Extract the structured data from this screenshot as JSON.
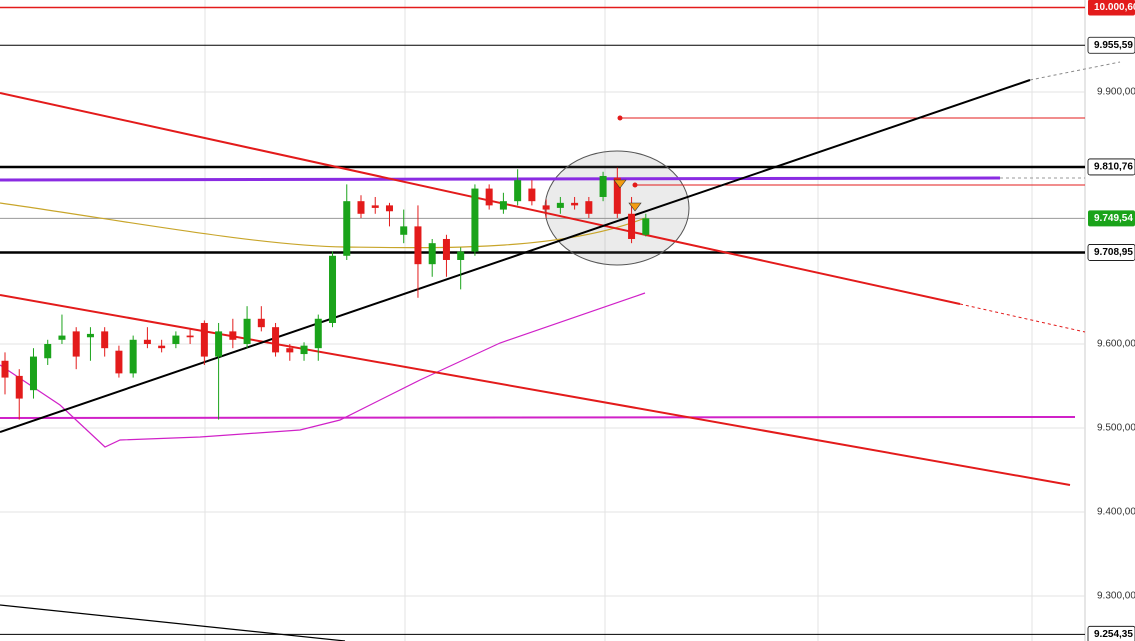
{
  "chart_data": {
    "type": "candlestick",
    "open": [
      9580,
      9562,
      9545,
      9583,
      9605,
      9615,
      9608,
      9615,
      9592,
      9565,
      9605,
      9598,
      9600,
      9610,
      9625,
      9585,
      9615,
      9600,
      9630,
      9620,
      9595,
      9588,
      9595,
      9625,
      9705,
      9770,
      9765,
      9765,
      9730,
      9740,
      9695,
      9725,
      9700,
      9710,
      9785,
      9760,
      9770,
      9785,
      9765,
      9762,
      9768,
      9770,
      9775,
      9798,
      9755,
      9730
    ],
    "high": [
      9590,
      9570,
      9595,
      9605,
      9635,
      9620,
      9620,
      9620,
      9598,
      9610,
      9620,
      9605,
      9615,
      9618,
      9628,
      9625,
      9630,
      9645,
      9645,
      9625,
      9600,
      9602,
      9635,
      9710,
      9790,
      9777,
      9775,
      9768,
      9760,
      9765,
      9725,
      9730,
      9715,
      9790,
      9790,
      9780,
      9808,
      9795,
      9772,
      9775,
      9775,
      9775,
      9805,
      9810,
      9775,
      9755
    ],
    "low": [
      9540,
      9510,
      9535,
      9575,
      9600,
      9570,
      9580,
      9585,
      9560,
      9560,
      9595,
      9590,
      9595,
      9600,
      9575,
      9510,
      9595,
      9595,
      9615,
      9585,
      9580,
      9580,
      9580,
      9620,
      9700,
      9750,
      9755,
      9740,
      9720,
      9655,
      9680,
      9680,
      9665,
      9705,
      9760,
      9755,
      9765,
      9765,
      9750,
      9755,
      9760,
      9750,
      9770,
      9750,
      9720,
      9728
    ],
    "close": [
      9560,
      9535,
      9585,
      9600,
      9610,
      9585,
      9612,
      9595,
      9565,
      9605,
      9600,
      9595,
      9610,
      9608,
      9585,
      9615,
      9605,
      9630,
      9620,
      9590,
      9590,
      9598,
      9630,
      9705,
      9770,
      9755,
      9762,
      9758,
      9740,
      9695,
      9720,
      9700,
      9710,
      9785,
      9765,
      9770,
      9795,
      9770,
      9760,
      9768,
      9765,
      9755,
      9800,
      9755,
      9725,
      9749.54
    ],
    "up_color": "#1aa31a",
    "down_color": "#e31b1b",
    "ylim": [
      9246.4,
      10009.5
    ],
    "yticks": [
      {
        "value": 9300,
        "label": "9.300,00"
      },
      {
        "value": 9400,
        "label": "9.400,00"
      },
      {
        "value": 9500,
        "label": "9.500,00"
      },
      {
        "value": 9600,
        "label": "9.600,00"
      },
      {
        "value": 9900,
        "label": "9.900,00"
      }
    ],
    "grid": true,
    "price_lines": [
      {
        "value": 10000.6,
        "label": "10.000,60",
        "color": "#e31b1b",
        "style": "filled"
      },
      {
        "value": 9955.59,
        "label": "9.955,59",
        "color": "#000000",
        "style": "outline"
      },
      {
        "value": 9810.76,
        "label": "9.810,76",
        "color": "#000000",
        "style": "outline"
      },
      {
        "value": 9749.54,
        "label": "9.749,54",
        "color": "#1aa31a",
        "style": "filled"
      },
      {
        "value": 9708.95,
        "label": "9.708,95",
        "color": "#000000",
        "style": "outline"
      },
      {
        "value": 9254.35,
        "label": "9.254,35",
        "color": "#000000",
        "style": "outline"
      }
    ]
  }
}
